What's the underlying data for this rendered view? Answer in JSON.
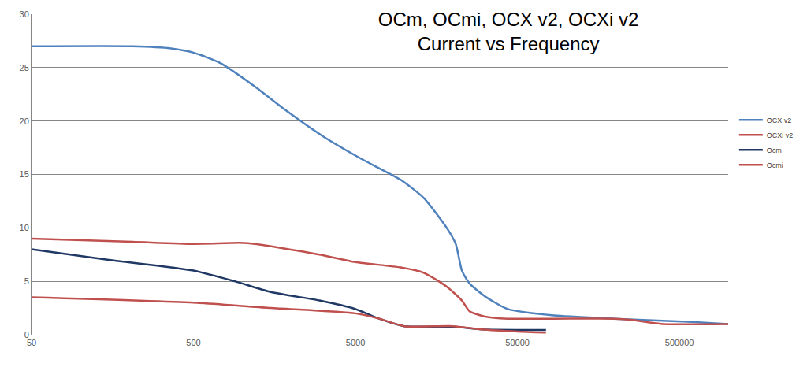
{
  "chart_data": {
    "type": "line",
    "title": "OCm, OCmi, OCX v2, OCXi v2",
    "subtitle": "Current vs Frequency",
    "log": "x",
    "grid": true,
    "legend": "right",
    "xlim": [
      50,
      1000000
    ],
    "xticks": [
      50,
      500,
      5000,
      50000,
      500000
    ],
    "ylim": [
      0,
      30
    ],
    "yticks": [
      0,
      5,
      10,
      15,
      20,
      25,
      30
    ],
    "series": [
      {
        "name": "OCX v2",
        "color": "#4f81bd",
        "x": [
          50,
          210,
          363,
          500,
          736,
          1202,
          1857,
          3200,
          5520,
          9500,
          13200,
          18300,
          20800,
          22700,
          25300,
          31500,
          43600,
          84000,
          200000,
          596000,
          1000000
        ],
        "values": [
          27,
          27,
          26.8,
          26.4,
          25.4,
          23.2,
          21,
          18.5,
          16.4,
          14.5,
          12.8,
          10,
          8.5,
          6,
          4.8,
          3.6,
          2.4,
          1.8,
          1.5,
          1.2,
          1.0
        ]
      },
      {
        "name": "OCXi v2",
        "color": "#c0504d",
        "x": [
          50,
          210,
          500,
          966,
          1202,
          3000,
          5000,
          9500,
          13200,
          18300,
          22700,
          25300,
          31500,
          43600,
          84000,
          200000,
          250000,
          400000,
          1000000
        ],
        "values": [
          9,
          8.7,
          8.5,
          8.6,
          8.5,
          7.5,
          6.8,
          6.3,
          5.8,
          4.5,
          3.2,
          2.2,
          1.7,
          1.5,
          1.5,
          1.5,
          1.4,
          1.0,
          1.0
        ]
      },
      {
        "name": "Ocm",
        "color": "#1f3864",
        "x": [
          50,
          150,
          500,
          900,
          1500,
          3000,
          5000,
          7000,
          10000,
          20000,
          30000,
          50000,
          75000
        ],
        "values": [
          8,
          7,
          6,
          5,
          4,
          3.2,
          2.4,
          1.5,
          0.8,
          0.75,
          0.5,
          0.45,
          0.45
        ]
      },
      {
        "name": "Ocmi",
        "color": "#c0504d",
        "x": [
          50,
          500,
          1500,
          5000,
          7000,
          10000,
          20000,
          30000,
          50000,
          75000
        ],
        "values": [
          3.5,
          3.0,
          2.5,
          2.0,
          1.5,
          0.8,
          0.8,
          0.5,
          0.3,
          0.2
        ]
      }
    ]
  }
}
